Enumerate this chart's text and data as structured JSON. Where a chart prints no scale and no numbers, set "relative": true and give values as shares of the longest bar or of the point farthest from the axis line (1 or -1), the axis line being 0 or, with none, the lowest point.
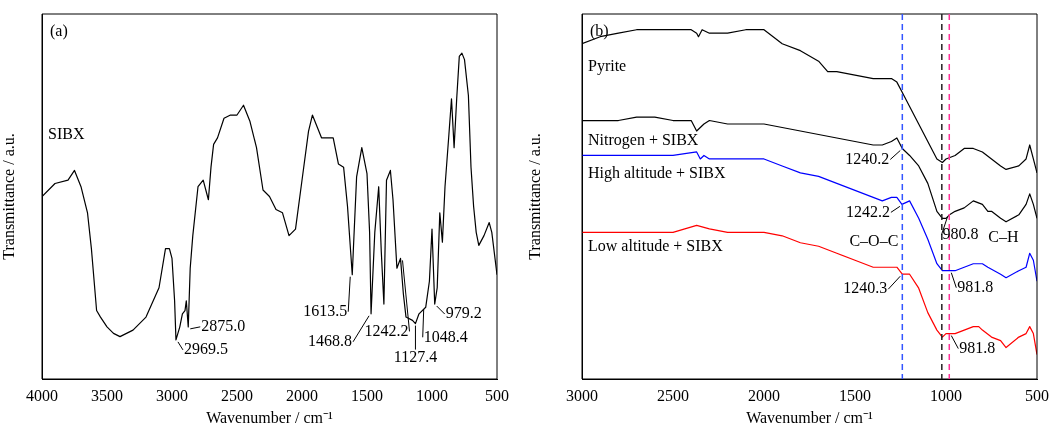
{
  "chart_data": [
    {
      "type": "line",
      "xlabel": "Wavenumber / cm⁻¹",
      "ylabel": "Transmittance / a.u.",
      "relative": true,
      "xlim": [
        4000,
        500
      ],
      "xticks": [
        4000,
        3500,
        3000,
        2500,
        2000,
        1500,
        1000,
        500
      ],
      "annotations": [
        "(a)",
        {
          "text": "2969.5",
          "x": 2969.5,
          "y": 0.12
        },
        {
          "text": "2875.0",
          "x": 2875,
          "y": 0.16
        },
        {
          "text": "1613.5",
          "x": 1613.5,
          "y": 0.32
        },
        {
          "text": "1468.8",
          "x": 1468.8,
          "y": 0.2
        },
        {
          "text": "1242.2",
          "x": 1242.2,
          "y": 0.37
        },
        {
          "text": "1127.4",
          "x": 1127.4,
          "y": 0.17
        },
        {
          "text": "1048.4",
          "x": 1048.4,
          "y": 0.22
        },
        {
          "text": "979.2",
          "x": 979.2,
          "y": 0.23
        }
      ],
      "series": [
        {
          "name": "SIBX",
          "color": "#000000",
          "x": [
            4000,
            3900,
            3800,
            3750,
            3700,
            3650,
            3620,
            3580,
            3550,
            3500,
            3450,
            3400,
            3300,
            3200,
            3100,
            3050,
            3020,
            3000,
            2980,
            2969.5,
            2940,
            2920,
            2900,
            2890,
            2875,
            2860,
            2840,
            2800,
            2760,
            2720,
            2700,
            2680,
            2650,
            2600,
            2550,
            2500,
            2450,
            2400,
            2350,
            2300,
            2250,
            2200,
            2150,
            2100,
            2050,
            2000,
            1950,
            1920,
            1880,
            1850,
            1800,
            1760,
            1720,
            1680,
            1650,
            1613.5,
            1580,
            1540,
            1500,
            1480,
            1468.8,
            1440,
            1410,
            1390,
            1370,
            1350,
            1320,
            1300,
            1270,
            1242.2,
            1220,
            1200,
            1150,
            1127.4,
            1100,
            1048.4,
            1020,
            1000,
            979.2,
            960,
            940,
            920,
            900,
            870,
            850,
            830,
            810,
            790,
            770,
            750,
            720,
            700,
            680,
            660,
            640,
            600,
            560,
            540,
            500
          ],
          "values": [
            0.56,
            0.6,
            0.61,
            0.64,
            0.59,
            0.51,
            0.4,
            0.21,
            0.19,
            0.16,
            0.14,
            0.13,
            0.15,
            0.19,
            0.28,
            0.4,
            0.4,
            0.37,
            0.24,
            0.12,
            0.16,
            0.2,
            0.21,
            0.24,
            0.16,
            0.34,
            0.44,
            0.59,
            0.61,
            0.55,
            0.65,
            0.72,
            0.74,
            0.8,
            0.81,
            0.81,
            0.84,
            0.79,
            0.71,
            0.58,
            0.56,
            0.52,
            0.51,
            0.44,
            0.46,
            0.61,
            0.76,
            0.81,
            0.77,
            0.74,
            0.74,
            0.74,
            0.66,
            0.65,
            0.53,
            0.32,
            0.62,
            0.71,
            0.63,
            0.45,
            0.2,
            0.45,
            0.59,
            0.39,
            0.23,
            0.61,
            0.64,
            0.55,
            0.34,
            0.37,
            0.26,
            0.19,
            0.18,
            0.17,
            0.2,
            0.22,
            0.3,
            0.46,
            0.23,
            0.28,
            0.51,
            0.42,
            0.59,
            0.75,
            0.86,
            0.71,
            0.86,
            0.99,
            1,
            0.98,
            0.87,
            0.65,
            0.53,
            0.45,
            0.41,
            0.44,
            0.48,
            0.45,
            0.32
          ]
        }
      ]
    },
    {
      "type": "line",
      "xlabel": "Wavenumber / cm⁻¹",
      "ylabel": "Transmittance / a.u.",
      "relative": true,
      "xlim": [
        3000,
        500
      ],
      "xticks": [
        3000,
        2500,
        2000,
        1500,
        1000,
        500
      ],
      "annotations": [
        "(b)",
        {
          "text": "1240.2",
          "x": 1240.2,
          "y": 0.66
        },
        {
          "text": "1242.2",
          "x": 1242.2,
          "y": 0.5
        },
        {
          "text": "1240.3",
          "x": 1240.3,
          "y": 0.3
        },
        {
          "text": "980.8",
          "x": 980.8,
          "y": 0.47
        },
        {
          "text": "981.8",
          "x": 981.8,
          "y": 0.31
        },
        {
          "text": "981.8",
          "x": 981.8,
          "y": 0.13
        }
      ],
      "ref_lines": [
        {
          "axis": "x",
          "value": 1240,
          "label": "C–O–C",
          "color": "#3355ff",
          "line_style": "dashed"
        },
        {
          "axis": "x",
          "value": 1023,
          "color": "#222222",
          "line_style": "dashed"
        },
        {
          "axis": "x",
          "value": 982,
          "label": "C–H",
          "color": "#ff3399",
          "line_style": "dashed"
        }
      ],
      "series": [
        {
          "name": "Pyrite",
          "color": "#000000",
          "x": [
            3000,
            2900,
            2800,
            2700,
            2600,
            2500,
            2400,
            2370,
            2360,
            2340,
            2300,
            2200,
            2100,
            2000,
            1950,
            1900,
            1800,
            1700,
            1650,
            1600,
            1500,
            1400,
            1300,
            1270,
            1240,
            1200,
            1150,
            1100,
            1050,
            1020,
            1000,
            950,
            900,
            850,
            800,
            750,
            700,
            670,
            600,
            560,
            540,
            520,
            500
          ],
          "values": [
            0.96,
            0.98,
            0.99,
            1,
            1,
            1,
            1,
            0.99,
            0.98,
            1,
            0.99,
            0.99,
            1,
            1,
            0.98,
            0.96,
            0.94,
            0.91,
            0.88,
            0.88,
            0.87,
            0.86,
            0.86,
            0.85,
            0.82,
            0.78,
            0.73,
            0.68,
            0.63,
            0.62,
            0.63,
            0.64,
            0.66,
            0.66,
            0.65,
            0.63,
            0.61,
            0.6,
            0.61,
            0.63,
            0.67,
            0.63,
            0.59
          ]
        },
        {
          "name": "Nitrogen + SIBX",
          "color": "#000000",
          "x": [
            3000,
            2900,
            2800,
            2700,
            2600,
            2500,
            2400,
            2370,
            2330,
            2300,
            2200,
            2100,
            2000,
            1900,
            1800,
            1700,
            1600,
            1500,
            1400,
            1350,
            1300,
            1270,
            1240.2,
            1200,
            1150,
            1100,
            1050,
            1020,
            1000,
            980.8,
            950,
            900,
            850,
            800,
            770,
            750,
            700,
            670,
            600,
            560,
            540,
            520,
            500
          ],
          "values": [
            0.74,
            0.74,
            0.74,
            0.75,
            0.75,
            0.74,
            0.74,
            0.71,
            0.73,
            0.74,
            0.73,
            0.73,
            0.73,
            0.72,
            0.71,
            0.7,
            0.69,
            0.68,
            0.67,
            0.67,
            0.68,
            0.69,
            0.66,
            0.64,
            0.61,
            0.56,
            0.48,
            0.46,
            0.46,
            0.47,
            0.48,
            0.49,
            0.51,
            0.5,
            0.48,
            0.48,
            0.46,
            0.45,
            0.47,
            0.5,
            0.53,
            0.5,
            0.46
          ]
        },
        {
          "name": "High altitude + SIBX",
          "color": "#0000ff",
          "x": [
            3000,
            2900,
            2800,
            2700,
            2600,
            2500,
            2370,
            2350,
            2330,
            2300,
            2200,
            2100,
            2000,
            1900,
            1800,
            1700,
            1600,
            1500,
            1400,
            1350,
            1300,
            1270,
            1242.2,
            1200,
            1150,
            1100,
            1050,
            1020,
            1000,
            981.8,
            950,
            900,
            850,
            800,
            770,
            700,
            670,
            600,
            560,
            540,
            520,
            500
          ],
          "values": [
            0.64,
            0.64,
            0.64,
            0.64,
            0.64,
            0.64,
            0.65,
            0.63,
            0.64,
            0.63,
            0.63,
            0.63,
            0.63,
            0.61,
            0.59,
            0.58,
            0.56,
            0.54,
            0.52,
            0.51,
            0.52,
            0.52,
            0.5,
            0.51,
            0.46,
            0.4,
            0.33,
            0.31,
            0.31,
            0.31,
            0.31,
            0.32,
            0.33,
            0.33,
            0.32,
            0.3,
            0.29,
            0.31,
            0.32,
            0.36,
            0.34,
            0.28
          ]
        },
        {
          "name": "Low altitude + SIBX",
          "color": "#ff0000",
          "x": [
            3000,
            2900,
            2800,
            2700,
            2600,
            2500,
            2370,
            2300,
            2200,
            2100,
            2000,
            1900,
            1800,
            1700,
            1600,
            1500,
            1400,
            1350,
            1300,
            1270,
            1240.3,
            1200,
            1150,
            1100,
            1050,
            1020,
            1000,
            981.8,
            950,
            900,
            850,
            820,
            800,
            750,
            700,
            670,
            600,
            560,
            540,
            520,
            500
          ],
          "values": [
            0.42,
            0.42,
            0.42,
            0.42,
            0.42,
            0.42,
            0.44,
            0.43,
            0.42,
            0.42,
            0.42,
            0.41,
            0.39,
            0.38,
            0.36,
            0.34,
            0.32,
            0.32,
            0.32,
            0.32,
            0.3,
            0.3,
            0.26,
            0.19,
            0.14,
            0.12,
            0.13,
            0.13,
            0.13,
            0.14,
            0.15,
            0.15,
            0.14,
            0.12,
            0.11,
            0.09,
            0.12,
            0.13,
            0.15,
            0.13,
            0.07
          ]
        }
      ]
    }
  ]
}
